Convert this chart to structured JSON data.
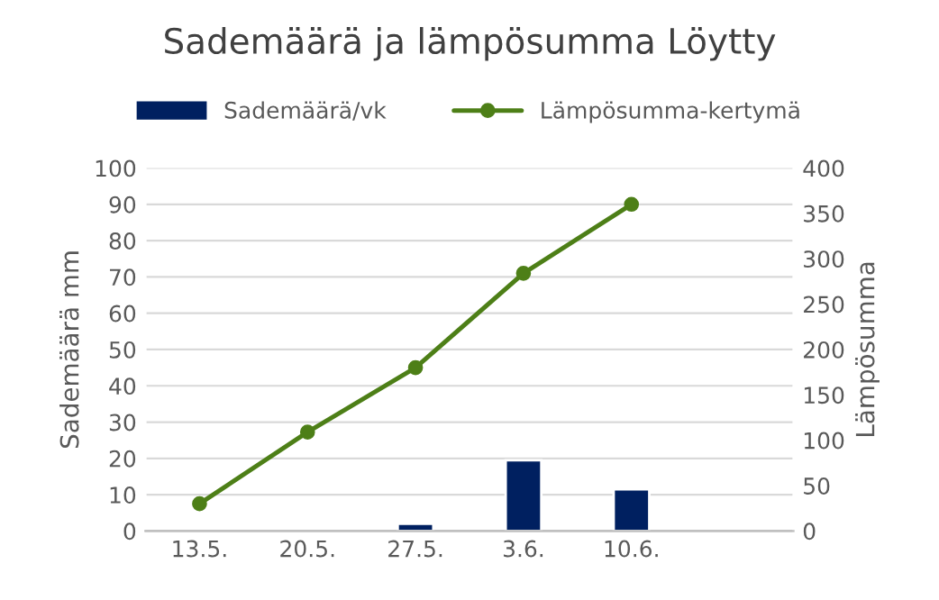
{
  "chart_data": {
    "type": "bar",
    "title": "Sademäärä ja lämpösumma Löytty",
    "ylabel": "Sademäärä mm",
    "y2label": "Lämpösumma",
    "categories": [
      "13.5.",
      "20.5.",
      "27.5.",
      "3.6.",
      "10.6.",
      null
    ],
    "series": [
      {
        "name": "Sademäärä/vk",
        "color": "#002060",
        "values": [
          null,
          null,
          2,
          19.5,
          11.5,
          null
        ]
      },
      {
        "name": "Lämpösumma-kertymä",
        "type": "line",
        "axis": "y2",
        "color": "#4d7f17",
        "marker": "circle",
        "values": [
          30,
          109,
          180,
          284,
          360,
          null
        ]
      }
    ],
    "ylim": [
      0,
      100
    ],
    "yticks": [
      0,
      10,
      20,
      30,
      40,
      50,
      60,
      70,
      80,
      90,
      100
    ],
    "y2lim": [
      0,
      400
    ],
    "y2ticks": [
      0,
      50,
      100,
      150,
      200,
      250,
      300,
      350,
      400
    ],
    "grid": "y",
    "legend": "top"
  }
}
